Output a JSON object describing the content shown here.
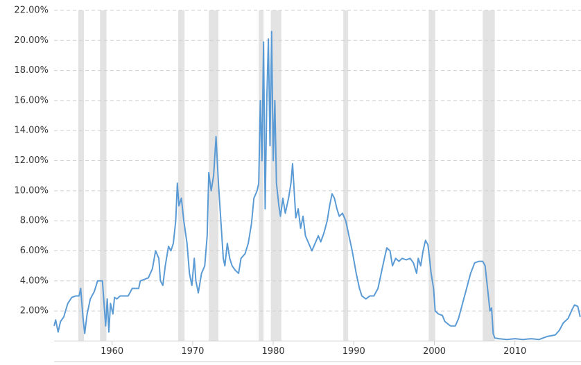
{
  "chart_data": {
    "type": "line",
    "xlim": [
      1952.8,
      2018.2
    ],
    "ylim": [
      0,
      22
    ],
    "xticks": [
      1960,
      1970,
      1980,
      1990,
      2000,
      2010
    ],
    "yticks": [
      {
        "value": 2,
        "label": "2.00%"
      },
      {
        "value": 4,
        "label": "4.00%"
      },
      {
        "value": 6,
        "label": "6.00%"
      },
      {
        "value": 8,
        "label": "8.00%"
      },
      {
        "value": 10,
        "label": "10.00%"
      },
      {
        "value": 12,
        "label": "12.00%"
      },
      {
        "value": 14,
        "label": "14.00%"
      },
      {
        "value": 16,
        "label": "16.00%"
      },
      {
        "value": 18,
        "label": "18.00%"
      },
      {
        "value": 20,
        "label": "20.00%"
      },
      {
        "value": 22,
        "label": "22.00%"
      }
    ],
    "grid": true,
    "recession_color": "#e3e3e3",
    "recessions": [
      [
        1955.8,
        1956.5
      ],
      [
        1958.5,
        1959.3
      ],
      [
        1968.2,
        1969.0
      ],
      [
        1972.0,
        1973.2
      ],
      [
        1978.2,
        1978.8
      ],
      [
        1979.7,
        1981.0
      ],
      [
        1988.7,
        1989.3
      ],
      [
        1999.3,
        2000.1
      ],
      [
        2006.0,
        2007.5
      ]
    ],
    "series": [
      {
        "color": "#5b9bd5",
        "x": [
          1952.8,
          1953.0,
          1953.3,
          1953.6,
          1954.0,
          1954.5,
          1955.0,
          1955.5,
          1955.9,
          1956.1,
          1956.4,
          1956.6,
          1956.9,
          1957.3,
          1957.8,
          1958.2,
          1958.8,
          1959.0,
          1959.2,
          1959.4,
          1959.6,
          1959.8,
          1960.1,
          1960.3,
          1960.6,
          1961.0,
          1962.0,
          1962.5,
          1963.3,
          1963.5,
          1964.5,
          1965.0,
          1965.4,
          1965.8,
          1966.0,
          1966.3,
          1966.6,
          1967.0,
          1967.3,
          1967.6,
          1967.9,
          1968.1,
          1968.3,
          1968.6,
          1968.9,
          1969.3,
          1969.6,
          1969.9,
          1970.2,
          1970.4,
          1970.7,
          1971.1,
          1971.5,
          1971.8,
          1972.0,
          1972.3,
          1972.6,
          1972.9,
          1973.2,
          1973.5,
          1973.8,
          1974.0,
          1974.3,
          1974.6,
          1974.9,
          1975.3,
          1975.7,
          1976.0,
          1976.5,
          1976.9,
          1977.3,
          1977.6,
          1978.0,
          1978.2,
          1978.4,
          1978.6,
          1978.8,
          1979.0,
          1979.2,
          1979.4,
          1979.6,
          1979.8,
          1980.0,
          1980.2,
          1980.4,
          1980.7,
          1980.9,
          1981.2,
          1981.5,
          1981.9,
          1982.2,
          1982.4,
          1982.6,
          1982.8,
          1983.1,
          1983.4,
          1983.7,
          1984.0,
          1984.4,
          1984.8,
          1985.2,
          1985.6,
          1985.9,
          1986.3,
          1986.7,
          1987.0,
          1987.3,
          1987.6,
          1987.9,
          1988.2,
          1988.6,
          1989.0,
          1989.4,
          1989.8,
          1990.3,
          1990.7,
          1991.0,
          1991.5,
          1992.0,
          1992.5,
          1993.0,
          1993.4,
          1993.8,
          1994.1,
          1994.5,
          1994.8,
          1995.2,
          1995.6,
          1996.0,
          1996.5,
          1997.0,
          1997.4,
          1997.8,
          1998.0,
          1998.3,
          1998.6,
          1998.9,
          1999.2,
          1999.4,
          1999.6,
          1999.9,
          2000.1,
          2000.5,
          2001.0,
          2001.3,
          2002.0,
          2002.6,
          2003.0,
          2003.5,
          2004.0,
          2004.5,
          2005.0,
          2005.5,
          2006.0,
          2006.3,
          2006.6,
          2006.9,
          2007.1,
          2007.3,
          2007.5,
          2008.0,
          2009.0,
          2010.0,
          2011.0,
          2012.0,
          2013.0,
          2014.0,
          2015.0,
          2015.5,
          2016.0,
          2016.6,
          2017.1,
          2017.4,
          2017.8,
          2018.1
        ],
        "values": [
          1.0,
          1.4,
          0.6,
          1.3,
          1.6,
          2.5,
          2.9,
          3.0,
          3.0,
          3.5,
          1.5,
          0.5,
          1.8,
          2.8,
          3.3,
          4.0,
          4.0,
          2.5,
          1.0,
          2.8,
          0.6,
          2.5,
          1.8,
          2.9,
          2.8,
          3.0,
          3.0,
          3.5,
          3.5,
          4.0,
          4.2,
          4.8,
          6.0,
          5.5,
          4.0,
          3.7,
          5.0,
          6.3,
          6.0,
          6.5,
          8.0,
          10.5,
          9.0,
          9.5,
          8.0,
          6.5,
          4.5,
          3.7,
          5.5,
          4.0,
          3.2,
          4.5,
          5.0,
          7.0,
          11.2,
          10.0,
          11.0,
          13.6,
          10.5,
          8.0,
          5.5,
          5.0,
          6.5,
          5.5,
          5.0,
          4.7,
          4.5,
          5.5,
          5.8,
          6.5,
          7.8,
          9.5,
          10.0,
          10.5,
          16.0,
          12.0,
          19.9,
          8.8,
          16.0,
          20.1,
          13.0,
          20.6,
          12.0,
          16.0,
          10.5,
          9.0,
          8.3,
          9.5,
          8.5,
          9.5,
          10.5,
          11.8,
          10.0,
          8.2,
          8.8,
          7.5,
          8.3,
          7.0,
          6.5,
          6.0,
          6.5,
          7.0,
          6.6,
          7.2,
          8.0,
          9.0,
          9.8,
          9.5,
          8.8,
          8.3,
          8.5,
          8.0,
          7.0,
          6.0,
          4.5,
          3.5,
          3.0,
          2.8,
          3.0,
          3.0,
          3.5,
          4.5,
          5.5,
          6.2,
          6.0,
          5.0,
          5.5,
          5.3,
          5.5,
          5.4,
          5.5,
          5.2,
          4.5,
          5.5,
          5.0,
          6.0,
          6.7,
          6.4,
          5.5,
          4.5,
          3.5,
          2.0,
          1.8,
          1.7,
          1.3,
          1.0,
          1.0,
          1.5,
          2.5,
          3.5,
          4.5,
          5.2,
          5.3,
          5.3,
          5.0,
          3.5,
          2.0,
          2.2,
          0.5,
          0.2,
          0.15,
          0.1,
          0.15,
          0.1,
          0.15,
          0.1,
          0.3,
          0.4,
          0.7,
          1.2,
          1.5,
          2.1,
          2.4,
          2.3,
          1.6
        ]
      }
    ]
  }
}
